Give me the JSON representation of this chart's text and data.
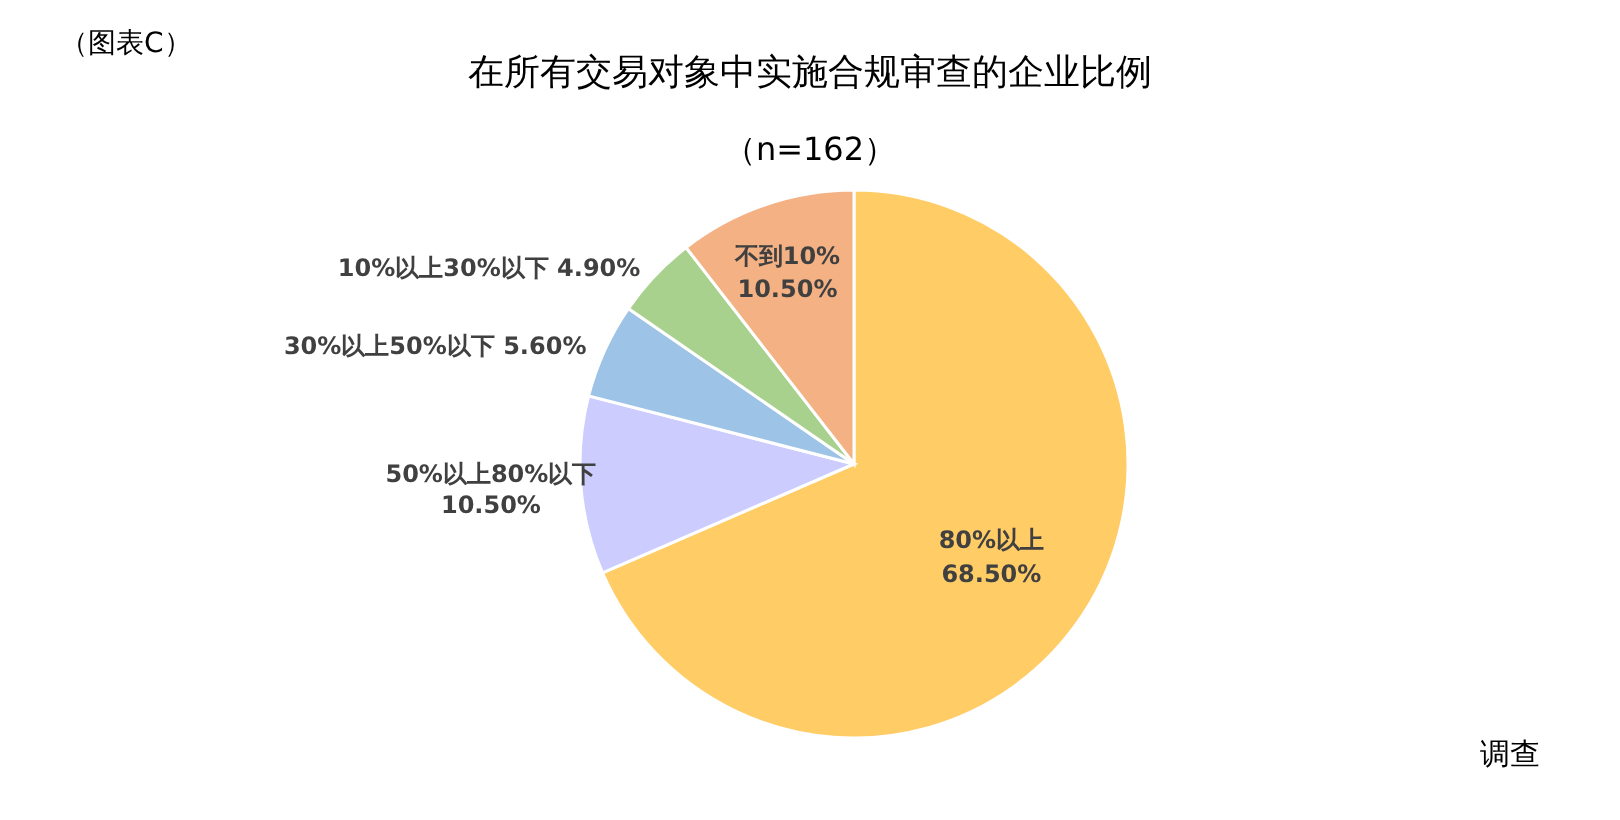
{
  "chart_data": {
    "type": "pie",
    "title": "在所有交易对象中实施合规审查的企业比例",
    "subtitle": "（n=162）",
    "annotations": [
      "（图表C）",
      "调查"
    ],
    "categories": [
      "80%以上",
      "50%以上80%以下",
      "30%以上50%以下",
      "10%以上30%以下",
      "不到10%"
    ],
    "values": [
      68.5,
      10.5,
      5.6,
      4.9,
      10.5
    ],
    "value_labels": [
      "68.50%",
      "10.50%",
      "5.60%",
      "4.90%",
      "10.50%"
    ],
    "colors": [
      "#ffcc66",
      "#ccccff",
      "#9dc3e6",
      "#a9d18e",
      "#f4b183"
    ]
  }
}
